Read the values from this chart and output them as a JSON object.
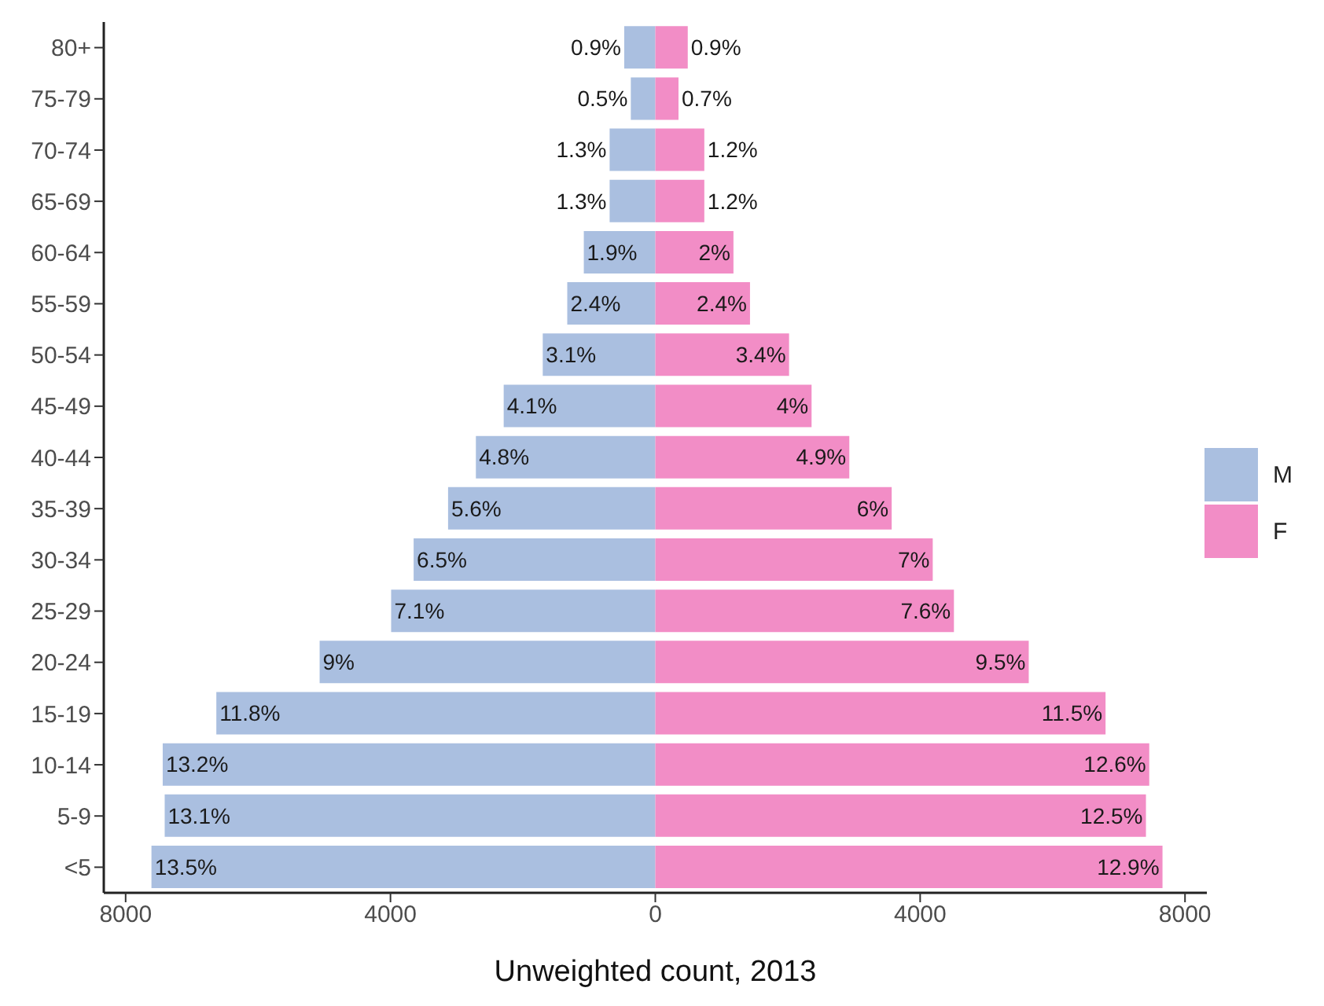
{
  "chart_data": {
    "type": "bar",
    "orientation": "horizontal",
    "stacked": true,
    "xlabel": "Unweighted count, 2013",
    "categories": [
      "80+",
      "75-79",
      "70-74",
      "65-69",
      "60-64",
      "55-59",
      "50-54",
      "45-49",
      "40-44",
      "35-39",
      "30-34",
      "25-29",
      "20-24",
      "15-19",
      "10-14",
      "5-9",
      "<5"
    ],
    "series": [
      {
        "name": "M",
        "color": "#aabfe0",
        "values": [
          -470,
          -370,
          -690,
          -690,
          -1080,
          -1330,
          -1700,
          -2290,
          -2710,
          -3130,
          -3650,
          -3990,
          -5070,
          -6630,
          -7440,
          -7410,
          -7610
        ]
      },
      {
        "name": "F",
        "color": "#f28dc6",
        "values": [
          490,
          350,
          740,
          740,
          1180,
          1430,
          2020,
          2360,
          2930,
          3570,
          4190,
          4510,
          5640,
          6800,
          7460,
          7410,
          7660
        ]
      }
    ],
    "annotations": [
      {
        "text": "0.9%",
        "x": -470,
        "y": "80+"
      },
      {
        "text": "0.5%",
        "x": -370,
        "y": "75-79"
      },
      {
        "text": "1.3%",
        "x": -690,
        "y": "70-74"
      },
      {
        "text": "1.3%",
        "x": -690,
        "y": "65-69"
      },
      {
        "text": "1.9%",
        "x": -1080,
        "y": "60-64"
      },
      {
        "text": "2.4%",
        "x": -1330,
        "y": "55-59"
      },
      {
        "text": "3.1%",
        "x": -1700,
        "y": "50-54"
      },
      {
        "text": "4.1%",
        "x": -2290,
        "y": "45-49"
      },
      {
        "text": "4.8%",
        "x": -2710,
        "y": "40-44"
      },
      {
        "text": "5.6%",
        "x": -3130,
        "y": "35-39"
      },
      {
        "text": "6.5%",
        "x": -3650,
        "y": "30-34"
      },
      {
        "text": "7.1%",
        "x": -3990,
        "y": "25-29"
      },
      {
        "text": "9%",
        "x": -5070,
        "y": "20-24"
      },
      {
        "text": "11.8%",
        "x": -6630,
        "y": "15-19"
      },
      {
        "text": "13.2%",
        "x": -7440,
        "y": "10-14"
      },
      {
        "text": "13.1%",
        "x": -7410,
        "y": "5-9"
      },
      {
        "text": "13.5%",
        "x": -7610,
        "y": "<5"
      },
      {
        "text": "0.9%",
        "x": 490,
        "y": "80+"
      },
      {
        "text": "0.7%",
        "x": 350,
        "y": "75-79"
      },
      {
        "text": "1.2%",
        "x": 740,
        "y": "70-74"
      },
      {
        "text": "1.2%",
        "x": 740,
        "y": "65-69"
      },
      {
        "text": "2%",
        "x": 1180,
        "y": "60-64"
      },
      {
        "text": "2.4%",
        "x": 1430,
        "y": "55-59"
      },
      {
        "text": "3.4%",
        "x": 2020,
        "y": "50-54"
      },
      {
        "text": "4%",
        "x": 2360,
        "y": "45-49"
      },
      {
        "text": "4.9%",
        "x": 2930,
        "y": "40-44"
      },
      {
        "text": "6%",
        "x": 3570,
        "y": "35-39"
      },
      {
        "text": "7%",
        "x": 4190,
        "y": "30-34"
      },
      {
        "text": "7.6%",
        "x": 4510,
        "y": "25-29"
      },
      {
        "text": "9.5%",
        "x": 5640,
        "y": "20-24"
      },
      {
        "text": "11.5%",
        "x": 6800,
        "y": "15-19"
      },
      {
        "text": "12.6%",
        "x": 7460,
        "y": "10-14"
      },
      {
        "text": "12.5%",
        "x": 7410,
        "y": "5-9"
      },
      {
        "text": "12.9%",
        "x": 7660,
        "y": "<5"
      }
    ],
    "xlim": [
      -8330,
      8330
    ],
    "xticks": [
      {
        "value": -8000,
        "label": "8000"
      },
      {
        "value": -4000,
        "label": "4000"
      },
      0,
      4000,
      8000
    ],
    "grid": false,
    "legend": "right"
  }
}
